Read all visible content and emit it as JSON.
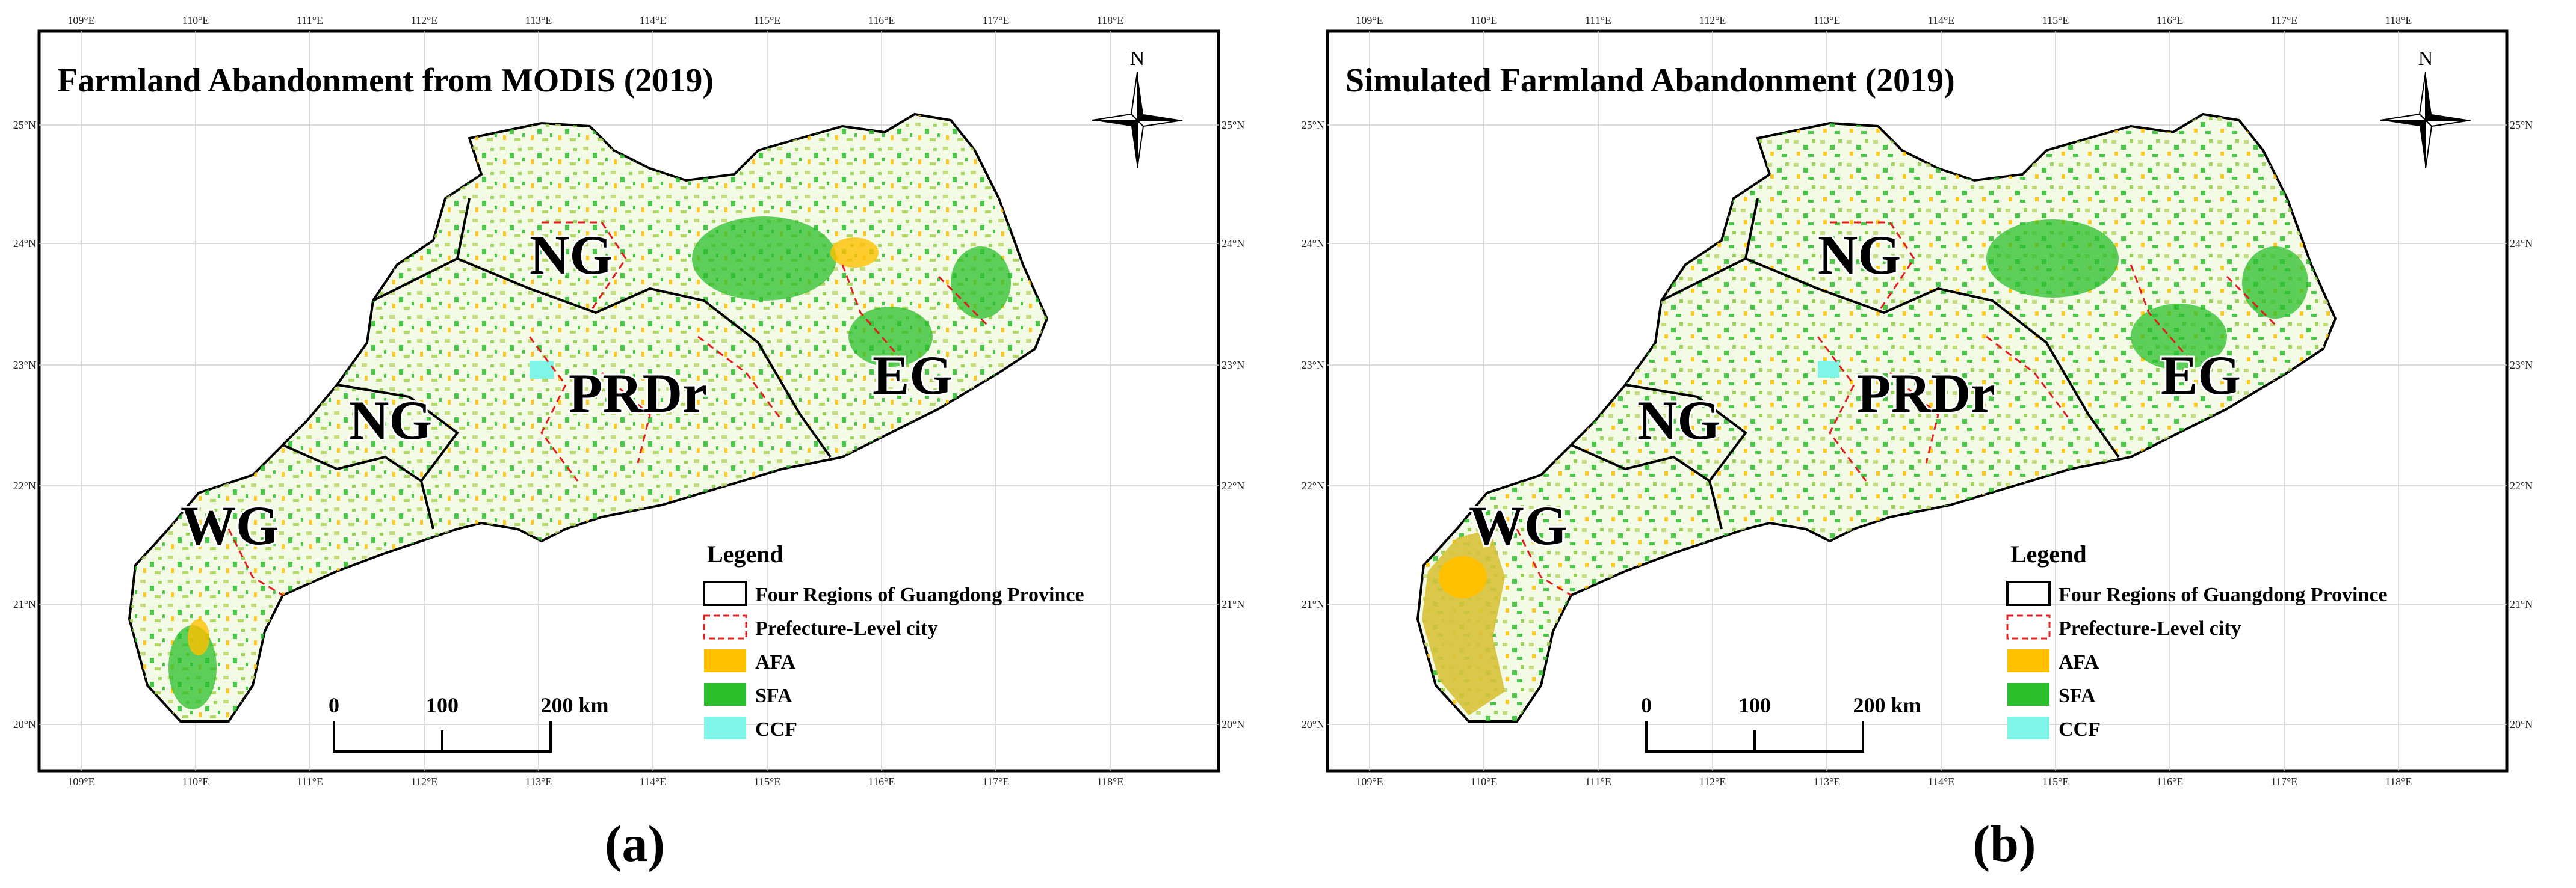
{
  "panels": [
    {
      "id": "a",
      "title": "Farmland Abandonment from MODIS (2019)",
      "caption": "(a)",
      "north_label": "N",
      "regions": {
        "ng_north": "NG",
        "ng_west": "NG",
        "prdr": "PRDr",
        "eg": "EG",
        "wg": "WG"
      },
      "lon_ticks": [
        "109°E",
        "110°E",
        "111°E",
        "112°E",
        "113°E",
        "114°E",
        "115°E",
        "116°E",
        "117°E",
        "118°E"
      ],
      "lat_ticks": [
        "25°N",
        "24°N",
        "23°N",
        "22°N",
        "21°N",
        "20°N"
      ],
      "legend": {
        "title": "Legend",
        "items": [
          "Four Regions of Guangdong Province",
          "Prefecture-Level city",
          "AFA",
          "SFA",
          "CCF"
        ]
      },
      "scale": {
        "zero": "0",
        "mid": "100",
        "end": "200 km"
      }
    },
    {
      "id": "b",
      "title": "Simulated Farmland Abandonment (2019)",
      "caption": "(b)",
      "north_label": "N",
      "regions": {
        "ng_north": "NG",
        "ng_west": "NG",
        "prdr": "PRDr",
        "eg": "EG",
        "wg": "WG"
      },
      "lon_ticks": [
        "109°E",
        "110°E",
        "111°E",
        "112°E",
        "113°E",
        "114°E",
        "115°E",
        "116°E",
        "117°E",
        "118°E"
      ],
      "lat_ticks": [
        "25°N",
        "24°N",
        "23°N",
        "22°N",
        "21°N",
        "20°N"
      ],
      "legend": {
        "title": "Legend",
        "items": [
          "Four Regions of Guangdong Province",
          "Prefecture-Level city",
          "AFA",
          "SFA",
          "CCF"
        ]
      },
      "scale": {
        "zero": "0",
        "mid": "100",
        "end": "200 km"
      }
    }
  ],
  "colors": {
    "afa": "#ffc000",
    "sfa": "#2bbf2b",
    "ccf": "#7ff5e8",
    "prefecture": "#e02020",
    "region": "#000000"
  }
}
